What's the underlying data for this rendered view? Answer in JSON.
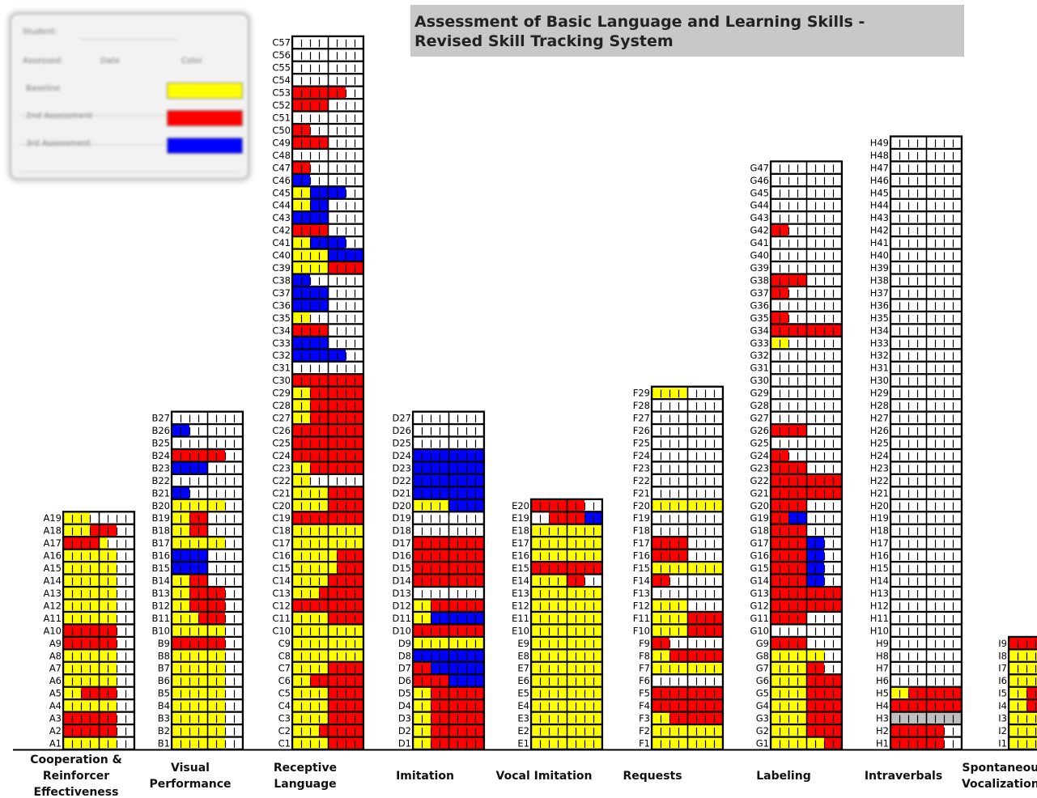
{
  "title": {
    "line1": "Assessment of Basic Language and Learning Skills -",
    "line2": "Revised Skill Tracking System"
  },
  "legend": {
    "header_left": "Student:",
    "header_value": "",
    "col1": "Assessed:",
    "col2": "Date",
    "col3": "Color",
    "rows": [
      {
        "label": "Baseline",
        "date": "",
        "color": "#ffff00"
      },
      {
        "label": "2nd Assessment",
        "date": "",
        "color": "#ff0000"
      },
      {
        "label": "3rd Assessment",
        "date": "",
        "color": "#0000ff"
      }
    ]
  },
  "colors": {
    "Y": "#ffff00",
    "R": "#ff0000",
    "B": "#0000ff",
    "G": "#c0c0c0",
    "W": "#ffffff",
    "border": "#000000"
  },
  "chart_data": {
    "type": "table",
    "title": "Assessment of Basic Language and Learning Skills - Revised Skill Tracking System",
    "domains": [
      {
        "name": "Cooperation & Reinforcer Effectiveness",
        "label_lines": [
          "Cooperation &",
          "Reinforcer",
          "Effectiveness"
        ],
        "letter": "A",
        "rows": [
          "YYYYYY",
          "RRRRRR",
          "RRRRRR",
          "YYYYYY",
          "YYRRRR",
          "YYYYYY",
          "YYYYYY",
          "YYYYYY",
          "RRRRRR",
          "RRRRRR",
          "YYYYYY",
          "YYYYYY",
          "YYYYYY",
          "YYYYYY",
          "YYYYYY",
          "YYYYYY",
          "RRRRYW",
          "YYYRRR",
          "YYYWWW"
        ]
      },
      {
        "name": "Visual Performance",
        "label_lines": [
          "Visual",
          "Performance"
        ],
        "letter": "B",
        "rows": [
          "YYYYYY",
          "YYYYYY",
          "YYYYYY",
          "YYYYYY",
          "YYYYYY",
          "YYYYYY",
          "YYYYYY",
          "YYYYYY",
          "RRRRRR",
          "YYYYYY",
          "YYYRRR",
          "YYRRRR",
          "YYRRRR",
          "YYRRWW",
          "BBBBWW",
          "BBBBWW",
          "YYYYYY",
          "YYRRWW",
          "YYRRWW",
          "YYYYYY",
          "BBWWWW",
          "WWWWWW",
          "BBBBWW",
          "RRRRRR",
          "WWWWWW",
          "BBWWWW",
          "WWWWWW"
        ]
      },
      {
        "name": "Receptive Language",
        "label_lines": [
          "Receptive",
          "Language"
        ],
        "letter": "C",
        "rows": [
          "YYYYRRRR",
          "YYYRRRRR",
          "YYYYRRRR",
          "YYYYRRRR",
          "YYYYRRRR",
          "YYRRRRRR",
          "YYYYRRRR",
          "YYYYYYYY",
          "YYYYYYYY",
          "YYYYYYYY",
          "YYYYRRRR",
          "RRRRRRRR",
          "YYYRRRRR",
          "YYYYRRRR",
          "YYYYYRRR",
          "YYYYYRRR",
          "YYYYYYYY",
          "YYYYYYYY",
          "RRRRRRRR",
          "YYYYRRRR",
          "YYYYRRRR",
          "YYWWWWWW",
          "YYRRRRRR",
          "RRRRRRRR",
          "RRRRRRRR",
          "RRRRRRRR",
          "YYRRRRRR",
          "YYRRRRRR",
          "YYRRRRRR",
          "RRRRRRRR",
          "WWWWWWWW",
          "BBBBBBWW",
          "BBBBWWWW",
          "RRRRWWWW",
          "YYWWWWWW",
          "BBBBWWWW",
          "BBBBWWWW",
          "BBWWWWWW",
          "YYYYRRRR",
          "YYYYBBBB",
          "YYBBBBWW",
          "RRRRWWWW",
          "BBBBWWWW",
          "YYBBWWWW",
          "YYBBBBWW",
          "BBWWWWWW",
          "RRWWWWWW",
          "WWWWWWWW",
          "RRRRWWWW",
          "RRWWWWWW",
          "WWWWWWWW",
          "RRRRWWWW",
          "RRRRRRWW",
          "WWWWWWWW",
          "WWWWWWWW",
          "WWWWWWWW",
          "WWWWWWWW"
        ]
      },
      {
        "name": "Imitation",
        "label_lines": [
          "Imitation"
        ],
        "letter": "D",
        "rows": [
          "YYRRRRRR",
          "YYRRRRRR",
          "YYRRRRRR",
          "YYRRRRRR",
          "YYRRRRRR",
          "RRRRBBBB",
          "RRBBBBBB",
          "BBBBBBBB",
          "YYYYYYYY",
          "RRRRRRRR",
          "YYBBBBBB",
          "YYRRRRRR",
          "WWWWWWWW",
          "RRRRRRRR",
          "RRRRRRRR",
          "RRRRRRRR",
          "RRRRRRRR",
          "WWWWWWWW",
          "WWWWWWWW",
          "YYYYBBBB",
          "BBBBBBBB",
          "BBBBBBBB",
          "BBBBBBBB",
          "BBBBBBBB",
          "WWWWWWWW",
          "WWWWWWWW",
          "WWWWWWWW"
        ]
      },
      {
        "name": "Vocal Imitation",
        "label_lines": [
          "Vocal Imitation"
        ],
        "letter": "E",
        "rows": [
          "YYYYYYYY",
          "YYYYYYYY",
          "YYYYYYYY",
          "YYYYYYYY",
          "YYYYYYYY",
          "YYYYYYYY",
          "YYYYYYYY",
          "YYYYYYYY",
          "YYYYYYYY",
          "YYYYYYYY",
          "YYYYYYYY",
          "YYYYYYYY",
          "YYYYYYYY",
          "YYYYRRWW",
          "RRRRRRRR",
          "YYYYYYYY",
          "YYYYYYYY",
          "YYYYYYYY",
          "WWRRRRBB",
          "RRRRRRWW"
        ]
      },
      {
        "name": "Requests",
        "label_lines": [
          "Requests"
        ],
        "letter": "F",
        "rows": [
          "YYYYYYYY",
          "YYYYYYYY",
          "YYRRRRRR",
          "RRRRRRRR",
          "RRRRRRRR",
          "WWWWWWWW",
          "YYYYYYYY",
          "YYRRRRRR",
          "RRWWWWWW",
          "YYYYRRRR",
          "YYYYRRRR",
          "YYYYWWWW",
          "WWWWWWWW",
          "RRWWWWWW",
          "YYYYYYYY",
          "RRRRWWWW",
          "RRRRWWWW",
          "WWWWWWWW",
          "WWWWWWWW",
          "YYYYYYYY",
          "WWWWWWWW",
          "WWWWWWWW",
          "WWWWWWWW",
          "WWWWWWWW",
          "WWWWWWWW",
          "WWWWWWWW",
          "WWWWWWWW",
          "WWWWWWWW",
          "YYYYWWWW"
        ]
      },
      {
        "name": "Labeling",
        "label_lines": [
          "Labeling"
        ],
        "letter": "G",
        "rows": [
          "YYYYYYRR",
          "YYYYRRRR",
          "YYYYRRRR",
          "YYYYRRRR",
          "YYYYRRRR",
          "YYYYRRRR",
          "YYYYRRWW",
          "YYYYYYWW",
          "RRRRWWWW",
          "WWWWWWWW",
          "RRRRWWWW",
          "RRRRRRRR",
          "RRRRRRRR",
          "RRRRBBWW",
          "RRRRBBWW",
          "RRRRBBWW",
          "RRRRBBWW",
          "RRRRWWWW",
          "RRBBWWWW",
          "RRRRWWWW",
          "RRRRRRRR",
          "RRRRRRRR",
          "RRRRWWWW",
          "RRWWWWWW",
          "WWWWWWWW",
          "RRRRWWWW",
          "WWWWWWWW",
          "WWWWWWWW",
          "WWWWWWWW",
          "WWWWWWWW",
          "WWWWWWWW",
          "WWWWWWWW",
          "YYWWWWWW",
          "RRRRRRRR",
          "RRWWWWWW",
          "WWWWWWWW",
          "RRWWWWWW",
          "RRRRWWWW",
          "WWWWWWWW",
          "WWWWWWWW",
          "WWWWWWWW",
          "RRWWWWWW",
          "WWWWWWWW",
          "WWWWWWWW",
          "WWWWWWWW",
          "WWWWWWWW",
          "WWWWWWWW"
        ]
      },
      {
        "name": "Intraverbals",
        "label_lines": [
          "Intraverbals"
        ],
        "letter": "H",
        "rows": [
          "RRRRRRWW",
          "RRRRRRWW",
          "GGGGGGGG",
          "RRRRRRRR",
          "YYRRRRRR",
          "WWWWWWWW",
          "WWWWWWWW",
          "WWWWWWWW",
          "WWWWWWWW",
          "WWWWWWWW",
          "WWWWWWWW",
          "WWWWWWWW",
          "WWWWWWWW",
          "WWWWWWWW",
          "WWWWWWWW",
          "WWWWWWWW",
          "WWWWWWWW",
          "WWWWWWWW",
          "WWWWWWWW",
          "WWWWWWWW",
          "WWWWWWWW",
          "WWWWWWWW",
          "WWWWWWWW",
          "WWWWWWWW",
          "WWWWWWWW",
          "WWWWWWWW",
          "WWWWWWWW",
          "WWWWWWWW",
          "WWWWWWWW",
          "WWWWWWWW",
          "WWWWWWWW",
          "WWWWWWWW",
          "WWWWWWWW",
          "WWWWWWWW",
          "WWWWWWWW",
          "WWWWWWWW",
          "WWWWWWWW",
          "WWWWWWWW",
          "WWWWWWWW",
          "WWWWWWWW",
          "WWWWWWWW",
          "WWWWWWWW",
          "WWWWWWWW",
          "WWWWWWWW",
          "WWWWWWWW",
          "WWWWWWWW",
          "WWWWWWWW",
          "WWWWWWWW",
          "WWWWWWWW"
        ]
      },
      {
        "name": "Spontaneous Vocalizations",
        "label_lines": [
          "Spontaneous",
          "Vocalizations"
        ],
        "letter": "I",
        "rows": [
          "YYYYYYYY",
          "YYYYYYYY",
          "YYYYYYYY",
          "YYRRRRRR",
          "YYRRRRRR",
          "YYYYYYYY",
          "YYYYYYYY",
          "YYYYYYYY",
          "RRRRRRRR"
        ]
      }
    ]
  }
}
